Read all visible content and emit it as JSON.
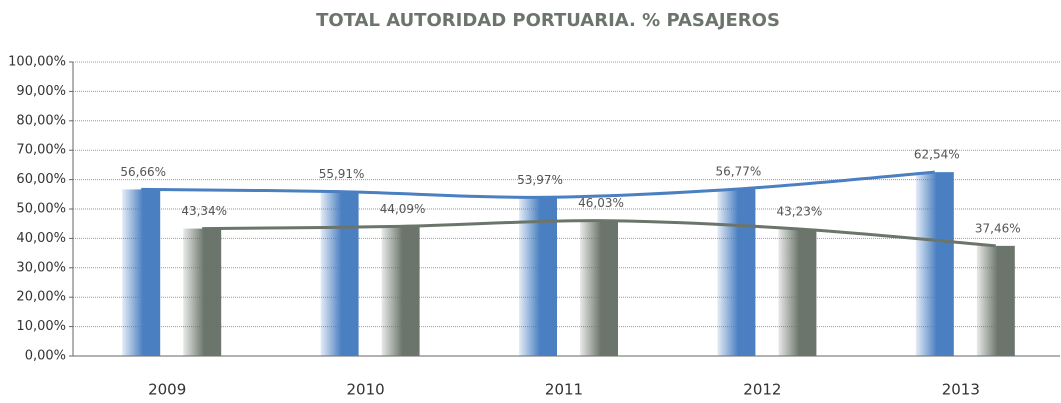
{
  "chart_data": {
    "type": "bar",
    "title": "TOTAL AUTORIDAD PORTUARIA. % PASAJEROS",
    "categories": [
      "2009",
      "2010",
      "2011",
      "2012",
      "2013"
    ],
    "series": [
      {
        "color": "#4a7fc1",
        "values": [
          56.66,
          55.91,
          53.97,
          56.77,
          62.54
        ],
        "value_labels": [
          "56,66%",
          "55,91%",
          "53,97%",
          "56,77%",
          "62,54%"
        ]
      },
      {
        "color": "#6b756b",
        "values": [
          43.34,
          44.09,
          46.03,
          43.23,
          37.46
        ],
        "value_labels": [
          "43,34%",
          "44,09%",
          "46,03%",
          "43,23%",
          "37,46%"
        ]
      }
    ],
    "ylim": [
      0,
      100
    ],
    "yticks": [
      {
        "value": 0,
        "label": "0,00%"
      },
      {
        "value": 10,
        "label": "10,00%"
      },
      {
        "value": 20,
        "label": "20,00%"
      },
      {
        "value": 30,
        "label": "30,00%"
      },
      {
        "value": 40,
        "label": "40,00%"
      },
      {
        "value": 50,
        "label": "50,00%"
      },
      {
        "value": 60,
        "label": "60,00%"
      },
      {
        "value": 70,
        "label": "70,00%"
      },
      {
        "value": 80,
        "label": "80,00%"
      },
      {
        "value": 90,
        "label": "90,00%"
      },
      {
        "value": 100,
        "label": "100,00%"
      }
    ],
    "grid": true,
    "trend_lines": true
  }
}
